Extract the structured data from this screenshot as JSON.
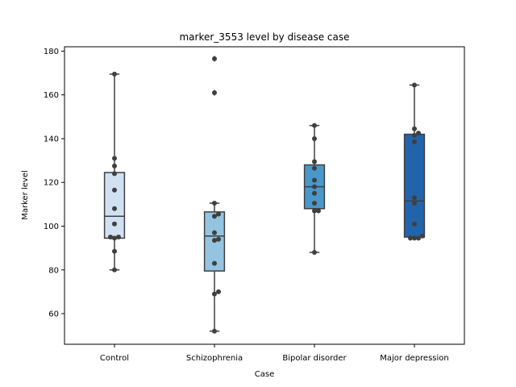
{
  "chart_data": {
    "type": "box",
    "title": "marker_3553 level by disease case",
    "xlabel": "Case",
    "ylabel": "Marker level",
    "ylim": [
      46,
      182
    ],
    "yticks": [
      60,
      80,
      100,
      120,
      140,
      160,
      180
    ],
    "grid": false,
    "categories": [
      "Control",
      "Schizophrenia",
      "Bipolar disorder",
      "Major depression"
    ],
    "colors": [
      "#d0e1f2",
      "#94c4df",
      "#4a98c9",
      "#2264ab"
    ],
    "boxes": [
      {
        "category": "Control",
        "whisker_low": 80,
        "q1": 94.5,
        "median": 104.5,
        "q3": 124.5,
        "whisker_high": 169.5,
        "outliers": []
      },
      {
        "category": "Schizophrenia",
        "whisker_low": 52,
        "q1": 79.5,
        "median": 95.5,
        "q3": 106.5,
        "whisker_high": 110.5,
        "outliers": [
          161,
          176.5
        ]
      },
      {
        "category": "Bipolar disorder",
        "whisker_low": 88,
        "q1": 108,
        "median": 118,
        "q3": 128,
        "whisker_high": 146,
        "outliers": []
      },
      {
        "category": "Major depression",
        "whisker_low": 94.5,
        "q1": 95,
        "median": 111.5,
        "q3": 142,
        "whisker_high": 164.5,
        "outliers": []
      }
    ],
    "points": [
      [
        169.5,
        131,
        127.5,
        124,
        116.5,
        108,
        101,
        95,
        95,
        94.5,
        88.5,
        80
      ],
      [
        176.5,
        161,
        110.5,
        105.5,
        104.5,
        97,
        94,
        93.5,
        83,
        70,
        69,
        52
      ],
      [
        146,
        140,
        129.5,
        126.5,
        121,
        118,
        115,
        110.5,
        107,
        107,
        88
      ],
      [
        164.5,
        144.5,
        142.5,
        141.5,
        138.5,
        113,
        110.5,
        101,
        95.5,
        94.5,
        94.5,
        94.5
      ]
    ]
  }
}
